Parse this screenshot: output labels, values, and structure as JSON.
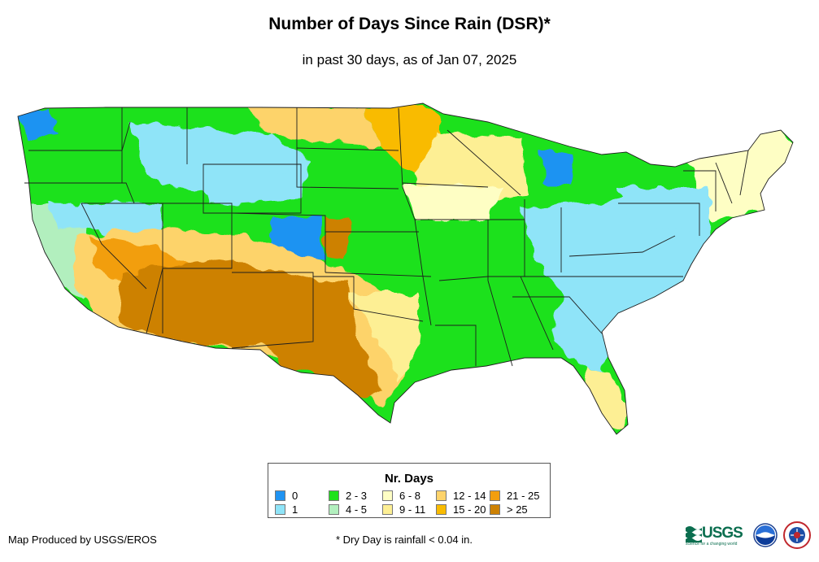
{
  "title": "Number of Days Since Rain (DSR)*",
  "subtitle": "in past 30 days, as of Jan 07, 2025",
  "colors": {
    "c0": "#1f93f2",
    "c1": "#8fe4f8",
    "c2_3": "#1fe11a",
    "c4_5": "#b2efbe",
    "c6_8": "#fefec4",
    "c9_11": "#fdef94",
    "c12_14": "#fdd36b",
    "c15_20": "#f9bb00",
    "c21_25": "#f29e0e",
    "cgt25": "#cd8102",
    "state_line": "#1e1e1e"
  },
  "legend": {
    "title": "Nr. Days",
    "items": [
      {
        "label": "0",
        "color": "#1f93f2"
      },
      {
        "label": "2 - 3",
        "color": "#1fe11a"
      },
      {
        "label": "6 - 8",
        "color": "#fefec4"
      },
      {
        "label": "12 - 14",
        "color": "#fdd36b"
      },
      {
        "label": "21 - 25",
        "color": "#f29e0e"
      },
      {
        "label": "1",
        "color": "#8fe4f8"
      },
      {
        "label": "4 - 5",
        "color": "#b2efbe"
      },
      {
        "label": "9 - 11",
        "color": "#fdef94"
      },
      {
        "label": "15 - 20",
        "color": "#f9bb00"
      },
      {
        "label": "> 25",
        "color": "#cd8102"
      }
    ]
  },
  "footer": {
    "producer": "Map Produced by USGS/EROS",
    "note": "* Dry Day is rainfall < 0.04 in."
  },
  "logos": {
    "usgs_label": "USGS",
    "usgs_tagline": "science for a changing world"
  }
}
